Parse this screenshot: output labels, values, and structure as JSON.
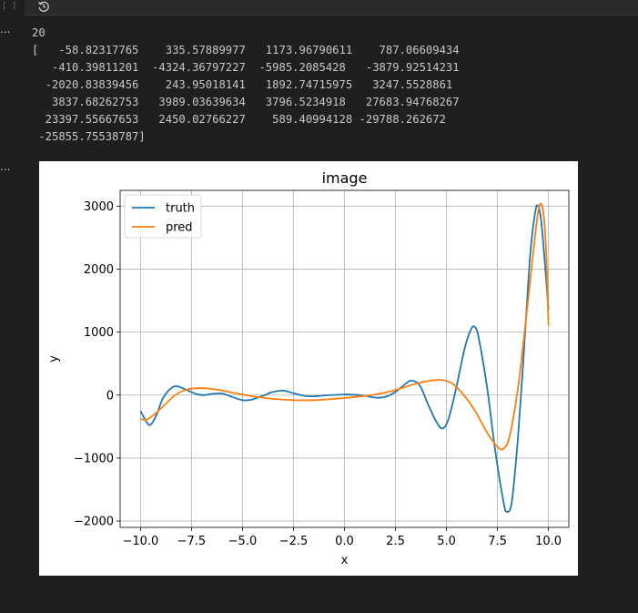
{
  "cell": {
    "execution_count": "[ ]",
    "history_icon": "history-icon",
    "more_label": "..."
  },
  "output": {
    "printed_scalar": "20",
    "array_lines": [
      "[   -58.82317765    335.57889977   1173.96790611    787.06609434",
      "   -410.39811201  -4324.36797227  -5985.2085428   -3879.92514231",
      "  -2020.83839456    243.95018141   1892.74715975   3247.5528861",
      "   3837.68262753   3989.03639634   3796.5234918   27683.94768267",
      "  23397.55667653   2450.02766227    589.40994128 -29788.262672",
      " -25855.75538787]"
    ]
  },
  "chart_data": {
    "type": "line",
    "title": "image",
    "xlabel": "x",
    "ylabel": "y",
    "xlim": [
      -11,
      11
    ],
    "ylim": [
      -2100,
      3250
    ],
    "xticks": [
      -10,
      -7.5,
      -5,
      -2.5,
      0,
      2.5,
      5,
      7.5,
      10
    ],
    "xtick_labels": [
      "−10.0",
      "−7.5",
      "−5.0",
      "−2.5",
      "0.0",
      "2.5",
      "5.0",
      "7.5",
      "10.0"
    ],
    "yticks": [
      -2000,
      -1000,
      0,
      1000,
      2000,
      3000
    ],
    "ytick_labels": [
      "−2000",
      "−1000",
      "0",
      "1000",
      "2000",
      "3000"
    ],
    "grid": true,
    "legend_position": "top-left",
    "series": [
      {
        "name": "truth",
        "color": "#1f77b4",
        "points": [
          [
            -10,
            -250
          ],
          [
            -9.7,
            -430
          ],
          [
            -9.5,
            -470
          ],
          [
            -9.2,
            -300
          ],
          [
            -8.9,
            -50
          ],
          [
            -8.5,
            110
          ],
          [
            -8.2,
            140
          ],
          [
            -7.8,
            90
          ],
          [
            -7.3,
            20
          ],
          [
            -6.9,
            0
          ],
          [
            -6.5,
            20
          ],
          [
            -6.0,
            25
          ],
          [
            -5.5,
            -30
          ],
          [
            -5.0,
            -80
          ],
          [
            -4.6,
            -75
          ],
          [
            -4.0,
            -10
          ],
          [
            -3.5,
            50
          ],
          [
            -3.0,
            70
          ],
          [
            -2.5,
            30
          ],
          [
            -2.0,
            -10
          ],
          [
            -1.5,
            -20
          ],
          [
            -1.0,
            -5
          ],
          [
            0.0,
            10
          ],
          [
            0.5,
            5
          ],
          [
            1.0,
            -10
          ],
          [
            1.5,
            -40
          ],
          [
            2.0,
            -30
          ],
          [
            2.5,
            50
          ],
          [
            3.0,
            180
          ],
          [
            3.3,
            230
          ],
          [
            3.7,
            150
          ],
          [
            4.1,
            -150
          ],
          [
            4.5,
            -420
          ],
          [
            4.8,
            -530
          ],
          [
            5.1,
            -380
          ],
          [
            5.5,
            150
          ],
          [
            5.9,
            750
          ],
          [
            6.2,
            1040
          ],
          [
            6.4,
            1080
          ],
          [
            6.6,
            880
          ],
          [
            7.0,
            100
          ],
          [
            7.4,
            -900
          ],
          [
            7.8,
            -1700
          ],
          [
            7.95,
            -1850
          ],
          [
            8.2,
            -1700
          ],
          [
            8.5,
            -700
          ],
          [
            8.8,
            700
          ],
          [
            9.1,
            2200
          ],
          [
            9.35,
            2900
          ],
          [
            9.5,
            3000
          ],
          [
            9.65,
            2750
          ],
          [
            9.85,
            2000
          ],
          [
            10.0,
            1350
          ]
        ]
      },
      {
        "name": "pred",
        "color": "#ff7f0e",
        "points": [
          [
            -10,
            -380
          ],
          [
            -9.7,
            -390
          ],
          [
            -9.3,
            -300
          ],
          [
            -8.8,
            -150
          ],
          [
            -8.3,
            0
          ],
          [
            -7.8,
            80
          ],
          [
            -7.2,
            110
          ],
          [
            -6.5,
            100
          ],
          [
            -5.5,
            40
          ],
          [
            -4.5,
            -20
          ],
          [
            -3.5,
            -60
          ],
          [
            -2.5,
            -80
          ],
          [
            -1.5,
            -80
          ],
          [
            -0.5,
            -60
          ],
          [
            0.5,
            -30
          ],
          [
            1.5,
            10
          ],
          [
            2.5,
            80
          ],
          [
            3.5,
            180
          ],
          [
            4.5,
            240
          ],
          [
            5.2,
            200
          ],
          [
            5.8,
            20
          ],
          [
            6.4,
            -250
          ],
          [
            7.0,
            -600
          ],
          [
            7.5,
            -820
          ],
          [
            7.8,
            -850
          ],
          [
            8.1,
            -650
          ],
          [
            8.5,
            100
          ],
          [
            8.9,
            1200
          ],
          [
            9.3,
            2400
          ],
          [
            9.55,
            3000
          ],
          [
            9.75,
            2900
          ],
          [
            9.9,
            2200
          ],
          [
            10.0,
            1100
          ]
        ]
      }
    ]
  }
}
